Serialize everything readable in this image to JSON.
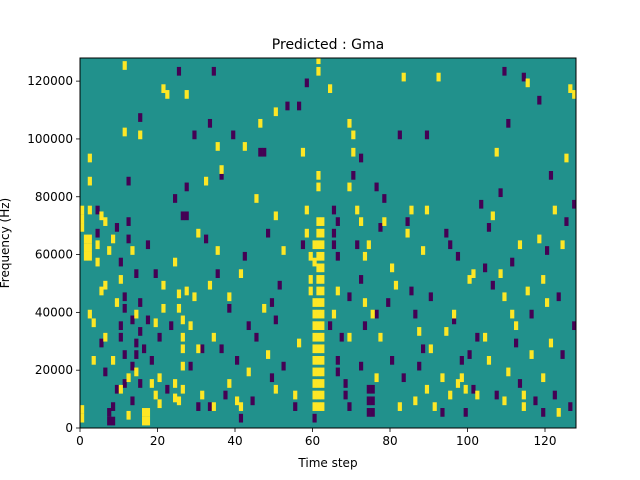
{
  "chart_data": {
    "type": "heatmap",
    "title": "Predicted : Gma",
    "xlabel": "Time step",
    "ylabel": "Frequency (Hz)",
    "xlim": [
      0,
      128
    ],
    "ylim": [
      0,
      128000
    ],
    "x_ticks": [
      0,
      20,
      40,
      60,
      80,
      100,
      120
    ],
    "y_ticks": [
      0,
      20000,
      40000,
      60000,
      80000,
      100000,
      120000
    ],
    "x_tick_labels": [
      "0",
      "20",
      "40",
      "60",
      "80",
      "100",
      "120"
    ],
    "y_tick_labels": [
      "0",
      "20000",
      "40000",
      "60000",
      "80000",
      "100000",
      "120000"
    ],
    "grid": false,
    "colormap": {
      "low": "#440154",
      "mid": "#21918c",
      "high": "#fde725"
    },
    "background_level": "mid",
    "cells_time_freq": "Approximate positions of off-background cells in data units (time step, frequency Hz); each cell spans 1 time step by ~2900 Hz.",
    "high_cells": [
      [
        0,
        2000
      ],
      [
        0,
        5000
      ],
      [
        0,
        74000
      ],
      [
        0,
        71000
      ],
      [
        0,
        68000
      ],
      [
        1,
        64000
      ],
      [
        1,
        61000
      ],
      [
        1,
        58000
      ],
      [
        2,
        92000
      ],
      [
        2,
        84000
      ],
      [
        2,
        74000
      ],
      [
        2,
        64000
      ],
      [
        2,
        61000
      ],
      [
        2,
        58000
      ],
      [
        2,
        38000
      ],
      [
        3,
        35000
      ],
      [
        3,
        22000
      ],
      [
        4,
        62000
      ],
      [
        4,
        56000
      ],
      [
        5,
        46000
      ],
      [
        5,
        72000
      ],
      [
        6,
        48000
      ],
      [
        6,
        30000
      ],
      [
        6,
        70000
      ],
      [
        7,
        60000
      ],
      [
        8,
        64000
      ],
      [
        8,
        22000
      ],
      [
        9,
        42000
      ],
      [
        10,
        50000
      ],
      [
        10,
        12000
      ],
      [
        11,
        124000
      ],
      [
        11,
        101000
      ],
      [
        12,
        16000
      ],
      [
        12,
        3000
      ],
      [
        13,
        60000
      ],
      [
        14,
        38000
      ],
      [
        14,
        18000
      ],
      [
        15,
        100000
      ],
      [
        16,
        4000
      ],
      [
        16,
        1000
      ],
      [
        17,
        4000
      ],
      [
        17,
        1000
      ],
      [
        18,
        14000
      ],
      [
        19,
        10000
      ],
      [
        19,
        35000
      ],
      [
        20,
        16000
      ],
      [
        20,
        7000
      ],
      [
        21,
        48000
      ],
      [
        21,
        40000
      ],
      [
        21,
        116000
      ],
      [
        22,
        114000
      ],
      [
        24,
        56000
      ],
      [
        24,
        14000
      ],
      [
        24,
        9000
      ],
      [
        25,
        8000
      ],
      [
        25,
        45000
      ],
      [
        25,
        40000
      ],
      [
        26,
        36000
      ],
      [
        26,
        30000
      ],
      [
        26,
        26000
      ],
      [
        26,
        20000
      ],
      [
        26,
        12000
      ],
      [
        27,
        114000
      ],
      [
        27,
        46000
      ],
      [
        28,
        34000
      ],
      [
        29,
        44000
      ],
      [
        30,
        26000
      ],
      [
        30,
        66000
      ],
      [
        31,
        10000
      ],
      [
        32,
        84000
      ],
      [
        33,
        48000
      ],
      [
        34,
        30000
      ],
      [
        34,
        6000
      ],
      [
        35,
        96000
      ],
      [
        35,
        60000
      ],
      [
        36,
        88000
      ],
      [
        38,
        44000
      ],
      [
        38,
        14000
      ],
      [
        40,
        8000
      ],
      [
        41,
        52000
      ],
      [
        41,
        6000
      ],
      [
        42,
        96000
      ],
      [
        43,
        18000
      ],
      [
        45,
        78000
      ],
      [
        46,
        104000
      ],
      [
        47,
        40000
      ],
      [
        48,
        24000
      ],
      [
        50,
        108000
      ],
      [
        50,
        72000
      ],
      [
        50,
        12000
      ],
      [
        52,
        60000
      ],
      [
        55,
        10000
      ],
      [
        56,
        28000
      ],
      [
        57,
        94000
      ],
      [
        58,
        74000
      ],
      [
        58,
        66000
      ],
      [
        59,
        58000
      ],
      [
        59,
        50000
      ],
      [
        59,
        46000
      ],
      [
        60,
        62000
      ],
      [
        60,
        56000
      ],
      [
        60,
        42000
      ],
      [
        60,
        38000
      ],
      [
        60,
        34000
      ],
      [
        60,
        30000
      ],
      [
        60,
        26000
      ],
      [
        60,
        22000
      ],
      [
        60,
        18000
      ],
      [
        60,
        14000
      ],
      [
        60,
        10000
      ],
      [
        60,
        6000
      ],
      [
        61,
        70000
      ],
      [
        61,
        66000
      ],
      [
        61,
        62000
      ],
      [
        61,
        58000
      ],
      [
        61,
        54000
      ],
      [
        61,
        50000
      ],
      [
        61,
        46000
      ],
      [
        61,
        42000
      ],
      [
        61,
        38000
      ],
      [
        61,
        34000
      ],
      [
        61,
        30000
      ],
      [
        61,
        26000
      ],
      [
        61,
        22000
      ],
      [
        61,
        18000
      ],
      [
        61,
        14000
      ],
      [
        61,
        10000
      ],
      [
        61,
        6000
      ],
      [
        61,
        122000
      ],
      [
        61,
        126000
      ],
      [
        61,
        86000
      ],
      [
        61,
        82000
      ],
      [
        62,
        70000
      ],
      [
        62,
        66000
      ],
      [
        62,
        62000
      ],
      [
        62,
        58000
      ],
      [
        62,
        54000
      ],
      [
        62,
        50000
      ],
      [
        62,
        46000
      ],
      [
        62,
        42000
      ],
      [
        62,
        38000
      ],
      [
        62,
        34000
      ],
      [
        62,
        30000
      ],
      [
        62,
        26000
      ],
      [
        62,
        22000
      ],
      [
        62,
        18000
      ],
      [
        62,
        14000
      ],
      [
        62,
        10000
      ],
      [
        62,
        6000
      ],
      [
        64,
        116000
      ],
      [
        65,
        38000
      ],
      [
        66,
        46000
      ],
      [
        69,
        104000
      ],
      [
        69,
        82000
      ],
      [
        69,
        30000
      ],
      [
        70,
        100000
      ],
      [
        70,
        94000
      ],
      [
        71,
        74000
      ],
      [
        72,
        70000
      ],
      [
        73,
        58000
      ],
      [
        73,
        42000
      ],
      [
        74,
        62000
      ],
      [
        75,
        38000
      ],
      [
        76,
        16000
      ],
      [
        77,
        30000
      ],
      [
        78,
        70000
      ],
      [
        80,
        54000
      ],
      [
        81,
        48000
      ],
      [
        82,
        6000
      ],
      [
        83,
        120000
      ],
      [
        84,
        66000
      ],
      [
        85,
        74000
      ],
      [
        86,
        8000
      ],
      [
        87,
        32000
      ],
      [
        88,
        60000
      ],
      [
        89,
        12000
      ],
      [
        89,
        74000
      ],
      [
        90,
        26000
      ],
      [
        91,
        6000
      ],
      [
        92,
        120000
      ],
      [
        93,
        16000
      ],
      [
        94,
        32000
      ],
      [
        95,
        10000
      ],
      [
        96,
        38000
      ],
      [
        97,
        14000
      ],
      [
        98,
        16000
      ],
      [
        99,
        12000
      ],
      [
        100,
        50000
      ],
      [
        101,
        52000
      ],
      [
        102,
        10000
      ],
      [
        104,
        30000
      ],
      [
        105,
        22000
      ],
      [
        106,
        72000
      ],
      [
        107,
        94000
      ],
      [
        108,
        52000
      ],
      [
        109,
        8000
      ],
      [
        109,
        44000
      ],
      [
        110,
        18000
      ],
      [
        111,
        38000
      ],
      [
        112,
        34000
      ],
      [
        113,
        62000
      ],
      [
        114,
        6000
      ],
      [
        114,
        10000
      ],
      [
        115,
        46000
      ],
      [
        115,
        118000
      ],
      [
        116,
        24000
      ],
      [
        118,
        64000
      ],
      [
        119,
        16000
      ],
      [
        119,
        50000
      ],
      [
        120,
        42000
      ],
      [
        121,
        28000
      ],
      [
        122,
        74000
      ],
      [
        123,
        4000
      ],
      [
        124,
        62000
      ],
      [
        125,
        92000
      ],
      [
        126,
        116000
      ],
      [
        127,
        114000
      ]
    ],
    "low_cells": [
      [
        4,
        74000
      ],
      [
        4,
        66000
      ],
      [
        5,
        28000
      ],
      [
        6,
        18000
      ],
      [
        7,
        4000
      ],
      [
        7,
        1000
      ],
      [
        8,
        6000
      ],
      [
        8,
        1000
      ],
      [
        9,
        68000
      ],
      [
        9,
        12000
      ],
      [
        10,
        56000
      ],
      [
        10,
        34000
      ],
      [
        10,
        30000
      ],
      [
        11,
        44000
      ],
      [
        11,
        40000
      ],
      [
        11,
        24000
      ],
      [
        11,
        14000
      ],
      [
        12,
        64000
      ],
      [
        12,
        70000
      ],
      [
        12,
        84000
      ],
      [
        13,
        8000
      ],
      [
        13,
        20000
      ],
      [
        13,
        36000
      ],
      [
        14,
        28000
      ],
      [
        14,
        24000
      ],
      [
        14,
        52000
      ],
      [
        15,
        42000
      ],
      [
        15,
        32000
      ],
      [
        15,
        14000
      ],
      [
        15,
        106000
      ],
      [
        16,
        26000
      ],
      [
        17,
        62000
      ],
      [
        17,
        36000
      ],
      [
        18,
        22000
      ],
      [
        19,
        52000
      ],
      [
        20,
        30000
      ],
      [
        22,
        12000
      ],
      [
        23,
        34000
      ],
      [
        24,
        78000
      ],
      [
        25,
        122000
      ],
      [
        26,
        72000
      ],
      [
        27,
        72000
      ],
      [
        27,
        82000
      ],
      [
        28,
        20000
      ],
      [
        29,
        100000
      ],
      [
        30,
        6000
      ],
      [
        31,
        26000
      ],
      [
        32,
        64000
      ],
      [
        33,
        6000
      ],
      [
        33,
        104000
      ],
      [
        34,
        122000
      ],
      [
        35,
        52000
      ],
      [
        36,
        86000
      ],
      [
        36,
        26000
      ],
      [
        37,
        10000
      ],
      [
        38,
        40000
      ],
      [
        39,
        100000
      ],
      [
        40,
        22000
      ],
      [
        41,
        2000
      ],
      [
        42,
        58000
      ],
      [
        43,
        34000
      ],
      [
        44,
        8000
      ],
      [
        45,
        30000
      ],
      [
        46,
        94000
      ],
      [
        47,
        94000
      ],
      [
        48,
        66000
      ],
      [
        49,
        42000
      ],
      [
        49,
        16000
      ],
      [
        50,
        36000
      ],
      [
        51,
        48000
      ],
      [
        52,
        20000
      ],
      [
        53,
        110000
      ],
      [
        55,
        6000
      ],
      [
        56,
        110000
      ],
      [
        57,
        62000
      ],
      [
        58,
        118000
      ],
      [
        60,
        2000
      ],
      [
        64,
        34000
      ],
      [
        65,
        74000
      ],
      [
        65,
        66000
      ],
      [
        65,
        62000
      ],
      [
        66,
        58000
      ],
      [
        66,
        70000
      ],
      [
        66,
        22000
      ],
      [
        66,
        18000
      ],
      [
        67,
        30000
      ],
      [
        68,
        10000
      ],
      [
        68,
        14000
      ],
      [
        69,
        44000
      ],
      [
        69,
        6000
      ],
      [
        70,
        86000
      ],
      [
        71,
        62000
      ],
      [
        72,
        92000
      ],
      [
        72,
        50000
      ],
      [
        72,
        20000
      ],
      [
        73,
        34000
      ],
      [
        74,
        12000
      ],
      [
        74,
        8000
      ],
      [
        74,
        4000
      ],
      [
        75,
        12000
      ],
      [
        75,
        4000
      ],
      [
        75,
        8000
      ],
      [
        76,
        82000
      ],
      [
        76,
        38000
      ],
      [
        77,
        68000
      ],
      [
        78,
        78000
      ],
      [
        79,
        42000
      ],
      [
        80,
        22000
      ],
      [
        82,
        100000
      ],
      [
        83,
        16000
      ],
      [
        84,
        70000
      ],
      [
        85,
        46000
      ],
      [
        86,
        38000
      ],
      [
        87,
        20000
      ],
      [
        88,
        26000
      ],
      [
        89,
        100000
      ],
      [
        90,
        44000
      ],
      [
        93,
        4000
      ],
      [
        94,
        66000
      ],
      [
        95,
        62000
      ],
      [
        96,
        36000
      ],
      [
        97,
        58000
      ],
      [
        98,
        22000
      ],
      [
        99,
        4000
      ],
      [
        100,
        24000
      ],
      [
        101,
        12000
      ],
      [
        102,
        30000
      ],
      [
        103,
        76000
      ],
      [
        104,
        54000
      ],
      [
        105,
        68000
      ],
      [
        106,
        48000
      ],
      [
        107,
        10000
      ],
      [
        108,
        80000
      ],
      [
        109,
        122000
      ],
      [
        110,
        104000
      ],
      [
        111,
        56000
      ],
      [
        112,
        28000
      ],
      [
        113,
        14000
      ],
      [
        114,
        120000
      ],
      [
        116,
        38000
      ],
      [
        117,
        8000
      ],
      [
        118,
        112000
      ],
      [
        119,
        4000
      ],
      [
        120,
        60000
      ],
      [
        121,
        86000
      ],
      [
        122,
        10000
      ],
      [
        123,
        44000
      ],
      [
        124,
        24000
      ],
      [
        125,
        70000
      ],
      [
        126,
        6000
      ],
      [
        127,
        34000
      ],
      [
        127,
        76000
      ]
    ]
  }
}
